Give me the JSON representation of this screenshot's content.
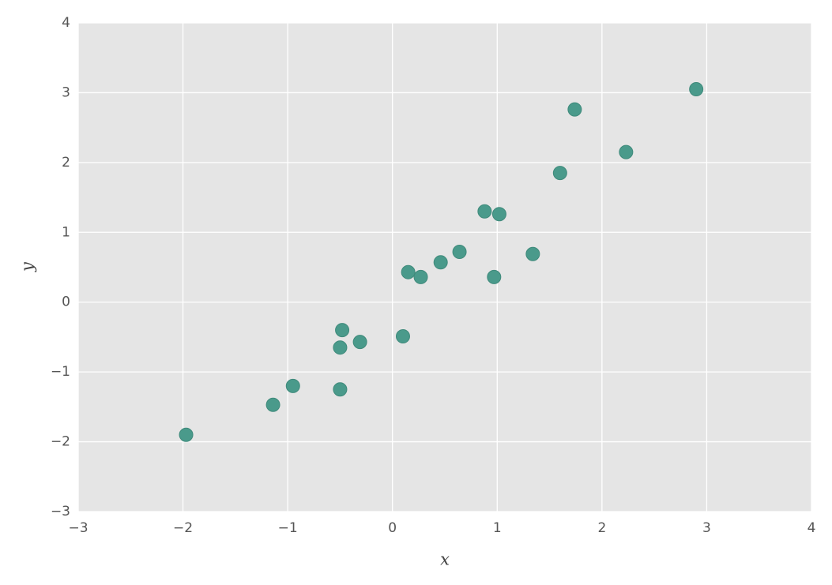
{
  "chart_data": {
    "type": "scatter",
    "xlabel": "x",
    "ylabel": "y",
    "x": [
      -1.97,
      -1.14,
      -0.95,
      -0.5,
      -0.5,
      -0.48,
      -0.31,
      0.1,
      0.15,
      0.27,
      0.46,
      0.64,
      0.88,
      1.02,
      0.97,
      1.34,
      1.6,
      1.74,
      2.23,
      2.9
    ],
    "values": [
      -1.9,
      -1.47,
      -1.2,
      -1.25,
      -0.65,
      -0.4,
      -0.57,
      -0.49,
      0.43,
      0.36,
      0.57,
      0.72,
      1.3,
      1.26,
      0.36,
      0.69,
      1.85,
      2.76,
      2.15,
      3.05
    ],
    "color": "#4a9a8b",
    "xlim": [
      -3,
      4
    ],
    "ylim": [
      -3,
      4
    ],
    "xticks": [
      {
        "value": -3,
        "label": "−3"
      },
      {
        "value": -2,
        "label": "−2"
      },
      {
        "value": -1,
        "label": "−1"
      },
      0,
      1,
      2,
      3,
      4
    ],
    "yticks": [
      {
        "value": -3,
        "label": "−3"
      },
      {
        "value": -2,
        "label": "−2"
      },
      {
        "value": -1,
        "label": "−1"
      },
      0,
      1,
      2,
      3,
      4
    ],
    "grid": true
  }
}
